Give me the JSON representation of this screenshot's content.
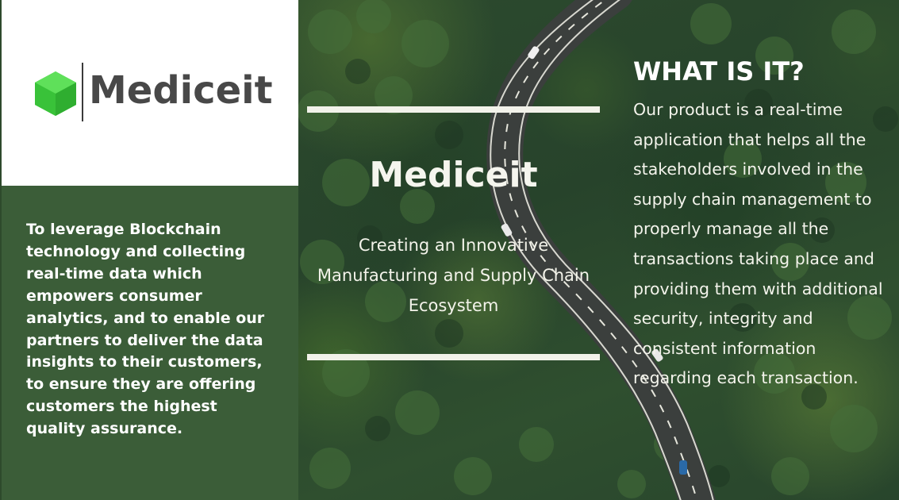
{
  "brand": {
    "logo_text": "Mediceit",
    "logo_icon": "green-cube-icon",
    "accent_color": "#3dce3d"
  },
  "mission": {
    "text": "To leverage Blockchain technology and collecting real-time data which empowers consumer analytics, and to enable our partners to deliver the data insights to their customers, to ensure they are offering customers the highest quality assurance.",
    "background_color": "#3b5d38"
  },
  "center": {
    "title": "Mediceit",
    "tagline": "Creating an Innovative Manufacturing and Supply Chain Ecosystem"
  },
  "what_is_it": {
    "heading": "WHAT IS IT?",
    "body": "Our product is a real-time application that helps all the stakeholders involved in the supply chain management to properly manage all the transactions taking place and providing them with additional security, integrity and consistent information regarding each transaction."
  },
  "background": {
    "image": "aerial forest with winding road",
    "base_color": "#2c4a2e"
  }
}
